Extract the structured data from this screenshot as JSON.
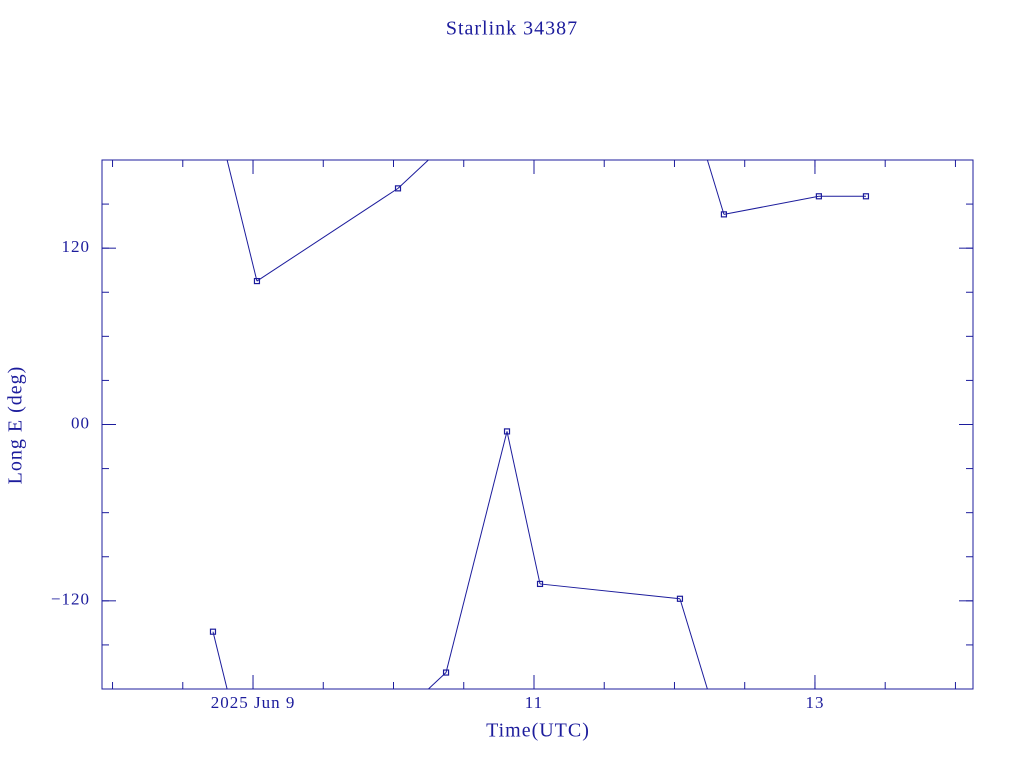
{
  "chart_data": {
    "type": "line",
    "title": "Starlink 34387",
    "x_label": "Time(UTC)",
    "y_label": "Long E (deg)",
    "color": "#1c1c9c",
    "xlim": [
      7.925,
      14.125
    ],
    "xticks": [
      {
        "value": 9,
        "label": "2025 Jun  9"
      },
      11,
      13
    ],
    "ylim": [
      -180,
      180
    ],
    "yticks": [
      {
        "value": -120,
        "label": "−120"
      },
      {
        "value": 0,
        "label": "00"
      },
      120
    ],
    "x": [
      8.715,
      9.028,
      10.032,
      10.374,
      10.808,
      11.043,
      12.039,
      12.352,
      13.028,
      13.363
    ],
    "values": [
      -141,
      97.6,
      160.7,
      -168.8,
      -4.7,
      -108.5,
      -118.6,
      143,
      155.3,
      155.3
    ]
  }
}
